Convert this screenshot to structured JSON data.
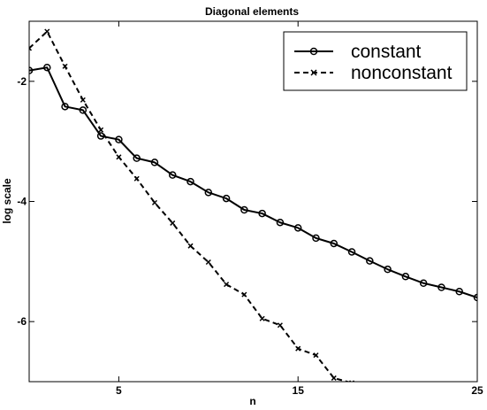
{
  "chart_data": {
    "type": "line",
    "title": "Diagonal elements",
    "xlabel": "n",
    "ylabel": "log scale",
    "xlim": [
      0,
      25
    ],
    "ylim": [
      -7,
      -1
    ],
    "x_ticks": [
      5,
      15,
      25
    ],
    "y_ticks": [
      -2,
      -4,
      -6
    ],
    "grid": false,
    "legend_position": "top-right",
    "series": [
      {
        "name": "constant",
        "line_style": "solid",
        "marker": "circle",
        "color": "#000000",
        "x": [
          0,
          1,
          2,
          3,
          4,
          5,
          6,
          7,
          8,
          9,
          10,
          11,
          12,
          13,
          14,
          15,
          16,
          17,
          18,
          19,
          20,
          21,
          22,
          23,
          24,
          25
        ],
        "y": [
          -1.82,
          -1.77,
          -2.42,
          -2.48,
          -2.91,
          -2.97,
          -3.28,
          -3.35,
          -3.56,
          -3.67,
          -3.85,
          -3.95,
          -4.14,
          -4.2,
          -4.35,
          -4.44,
          -4.61,
          -4.7,
          -4.84,
          -4.99,
          -5.13,
          -5.25,
          -5.36,
          -5.43,
          -5.5,
          -5.6
        ]
      },
      {
        "name": "nonconstant",
        "line_style": "dashed",
        "marker": "x",
        "color": "#000000",
        "x": [
          0,
          1,
          2,
          3,
          4,
          5,
          6,
          7,
          8,
          9,
          10,
          11,
          12,
          13,
          14,
          15,
          16,
          17,
          18
        ],
        "y": [
          -1.45,
          -1.17,
          -1.75,
          -2.31,
          -2.81,
          -3.26,
          -3.62,
          -4.02,
          -4.36,
          -4.74,
          -5.01,
          -5.38,
          -5.55,
          -5.95,
          -6.06,
          -6.45,
          -6.56,
          -6.94,
          -7.02
        ]
      }
    ]
  }
}
